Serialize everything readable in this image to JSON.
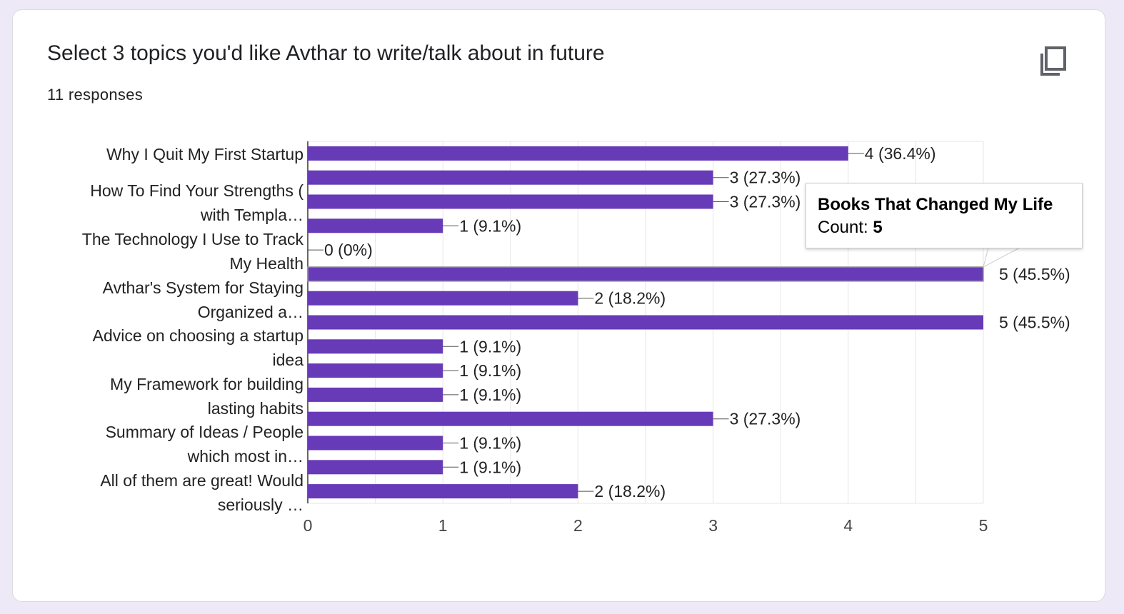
{
  "header": {
    "title": "Select 3 topics you'd like Avthar to write/talk about in future",
    "responses": "11 responses"
  },
  "icons": {
    "copy": "copy-icon"
  },
  "colors": {
    "bar": "#673ab7",
    "gridline": "#e6e6e6",
    "axis": "#333333",
    "background": "#ede9f6"
  },
  "chart_data": {
    "type": "bar",
    "orientation": "horizontal",
    "xlim": [
      0,
      5
    ],
    "x_ticks": [
      "0",
      "1",
      "2",
      "3",
      "4",
      "5"
    ],
    "category_labels": [
      [
        "Why I Quit My First Startup"
      ],
      [
        "How To Find Your Strengths (",
        "with Templa…"
      ],
      [
        "The Technology I Use to Track",
        "My Health"
      ],
      [
        "Avthar's System for Staying",
        "Organized a…"
      ],
      [
        "Advice on choosing a startup",
        "idea"
      ],
      [
        "My Framework for building",
        "lasting habits"
      ],
      [
        "Summary of Ideas / People",
        "which most in…"
      ],
      [
        "All of them are great! Would",
        "seriously …"
      ]
    ],
    "values": [
      4,
      3,
      3,
      1,
      0,
      5,
      2,
      5,
      1,
      1,
      1,
      3,
      1,
      1,
      2
    ],
    "value_labels": [
      "4 (36.4%)",
      "3 (27.3%)",
      "3 (27.3%)",
      "1 (9.1%)",
      "0 (0%)",
      "5 (45.5%)",
      "2 (18.2%)",
      "5 (45.5%)",
      "1 (9.1%)",
      "1 (9.1%)",
      "1 (9.1%)",
      "3 (27.3%)",
      "1 (9.1%)",
      "1 (9.1%)",
      "2 (18.2%)"
    ],
    "highlighted_bar": 5,
    "grid": true
  },
  "tooltip": {
    "title": "Books That Changed My Life",
    "count_label": "Count: ",
    "count_value": "5"
  }
}
